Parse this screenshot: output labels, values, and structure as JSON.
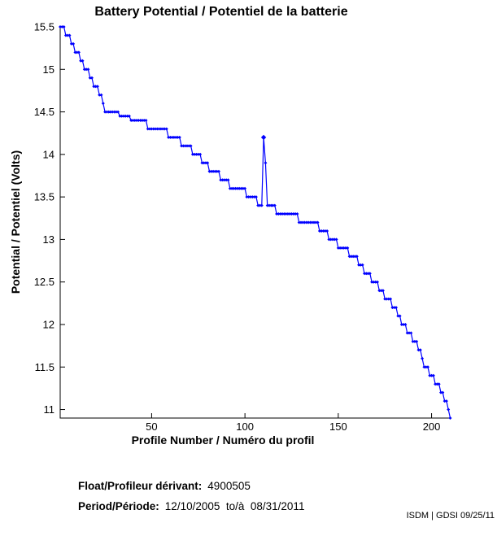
{
  "title": "Battery Potential / Potentiel de la batterie",
  "chart_data": {
    "type": "line",
    "title": "Battery Potential / Potentiel de la batterie",
    "xlabel": "Profile Number / Numéro du profil",
    "ylabel": "Potential / Potentiel (Volts)",
    "xlim": [
      1,
      210
    ],
    "ylim": [
      10.9,
      15.5
    ],
    "xticks": [
      50,
      100,
      150,
      200
    ],
    "yticks": [
      11,
      11.5,
      12,
      12.5,
      13,
      13.5,
      14,
      14.5,
      15,
      15.5
    ],
    "grid": false,
    "legend": "none",
    "line_color": "#0000ff",
    "marker": "diamond",
    "series_name": "battery-potential-volts",
    "series_segments": [
      [
        1,
        3,
        15.5
      ],
      [
        4,
        6,
        15.4
      ],
      [
        7,
        8,
        15.3
      ],
      [
        9,
        11,
        15.2
      ],
      [
        12,
        13,
        15.1
      ],
      [
        14,
        16,
        15.0
      ],
      [
        17,
        18,
        14.9
      ],
      [
        19,
        21,
        14.8
      ],
      [
        22,
        23,
        14.7
      ],
      [
        24,
        24,
        14.6
      ],
      [
        25,
        32,
        14.5
      ],
      [
        33,
        38,
        14.45
      ],
      [
        39,
        47,
        14.4
      ],
      [
        48,
        58,
        14.3
      ],
      [
        59,
        65,
        14.2
      ],
      [
        66,
        71,
        14.1
      ],
      [
        72,
        76,
        14.0
      ],
      [
        77,
        80,
        13.9
      ],
      [
        81,
        86,
        13.8
      ],
      [
        87,
        91,
        13.7
      ],
      [
        92,
        100,
        13.6
      ],
      [
        101,
        106,
        13.5
      ],
      [
        107,
        109,
        13.4
      ],
      [
        110,
        110,
        14.2
      ],
      [
        111,
        111,
        13.9
      ],
      [
        112,
        116,
        13.4
      ],
      [
        117,
        128,
        13.3
      ],
      [
        129,
        139,
        13.2
      ],
      [
        140,
        144,
        13.1
      ],
      [
        145,
        149,
        13.0
      ],
      [
        150,
        155,
        12.9
      ],
      [
        156,
        160,
        12.8
      ],
      [
        161,
        163,
        12.7
      ],
      [
        164,
        167,
        12.6
      ],
      [
        168,
        171,
        12.5
      ],
      [
        172,
        174,
        12.4
      ],
      [
        175,
        178,
        12.3
      ],
      [
        179,
        181,
        12.2
      ],
      [
        182,
        183,
        12.1
      ],
      [
        184,
        186,
        12.0
      ],
      [
        187,
        189,
        11.9
      ],
      [
        190,
        192,
        11.8
      ],
      [
        193,
        194,
        11.7
      ],
      [
        195,
        195,
        11.6
      ],
      [
        196,
        198,
        11.5
      ],
      [
        199,
        201,
        11.4
      ],
      [
        202,
        204,
        11.3
      ],
      [
        205,
        206,
        11.2
      ],
      [
        207,
        208,
        11.1
      ],
      [
        209,
        209,
        11.0
      ],
      [
        210,
        210,
        10.9
      ]
    ],
    "spike_annotation": {
      "profile": 110,
      "value": 14.2
    }
  },
  "footer": {
    "float_label": "Float/Profileur dérivant:",
    "float_value": "4900505",
    "period_label": "Period/Période:",
    "period_value": "12/10/2005  to/à  08/31/2011"
  },
  "watermark": "ISDM | GDSI 09/25/11"
}
